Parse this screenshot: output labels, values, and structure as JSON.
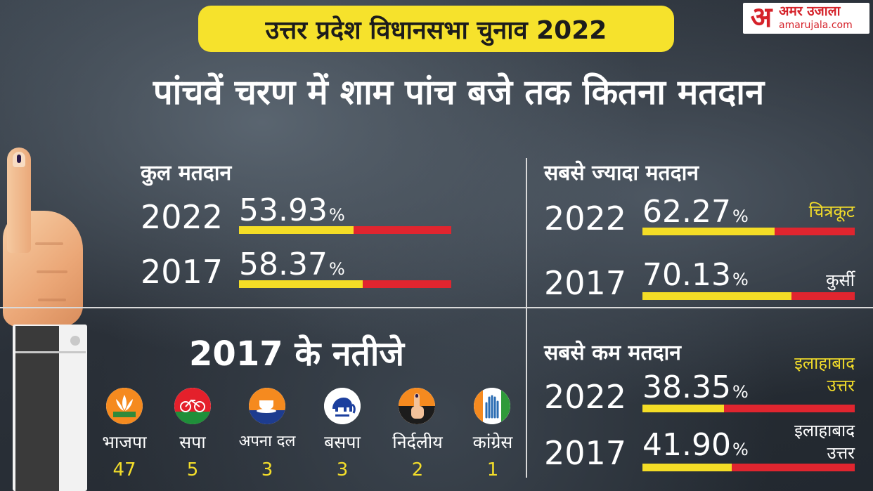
{
  "header": {
    "banner_title": "उत्तर प्रदेश विधानसभा चुनाव 2022",
    "main_title": "पांचवें चरण में शाम पांच बजे तक कितना मतदान"
  },
  "logo": {
    "mark": "अ",
    "name": "अमर उजाला",
    "url": "amarujala.com",
    "color": "#d5222a"
  },
  "colors": {
    "banner": "#f6e22c",
    "bar_fill": "#f4dd26",
    "bar_track": "#e0252f",
    "highlight_text": "#f3dd2a"
  },
  "total_turnout": {
    "title": "कुल मतदान",
    "rows": [
      {
        "year": "2022",
        "value": "53.93",
        "unit": "%",
        "percent": 53.93
      },
      {
        "year": "2017",
        "value": "58.37",
        "unit": "%",
        "percent": 58.37
      }
    ]
  },
  "highest_turnout": {
    "title": "सबसे ज्यादा मतदान",
    "rows": [
      {
        "year": "2022",
        "value": "62.27",
        "unit": "%",
        "percent": 62.27,
        "place": "चित्रकूट"
      },
      {
        "year": "2017",
        "value": "70.13",
        "unit": "%",
        "percent": 70.13,
        "place": "कुर्सी"
      }
    ]
  },
  "lowest_turnout": {
    "title": "सबसे कम मतदान",
    "rows": [
      {
        "year": "2022",
        "value": "38.35",
        "unit": "%",
        "percent": 38.35,
        "place_line1": "इलाहाबाद",
        "place_line2": "उत्तर"
      },
      {
        "year": "2017",
        "value": "41.90",
        "unit": "%",
        "percent": 41.9,
        "place_line1": "इलाहाबाद",
        "place_line2": "उत्तर"
      }
    ]
  },
  "results_2017": {
    "title": "2017 के नतीजे",
    "parties": [
      {
        "name": "भाजपा",
        "seats": "47",
        "icon": "lotus-icon"
      },
      {
        "name": "सपा",
        "seats": "5",
        "icon": "bicycle-icon"
      },
      {
        "name": "अपना दल",
        "seats": "3",
        "icon": "cup-saucer-icon"
      },
      {
        "name": "बसपा",
        "seats": "3",
        "icon": "elephant-icon"
      },
      {
        "name": "निर्दलीय",
        "seats": "2",
        "icon": "voting-finger-icon"
      },
      {
        "name": "कांग्रेस",
        "seats": "1",
        "icon": "hand-icon"
      }
    ]
  }
}
